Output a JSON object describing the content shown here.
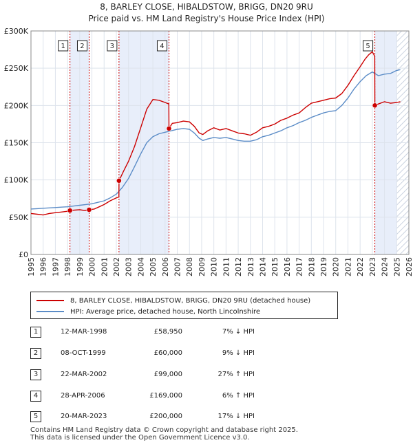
{
  "title": {
    "line1": "8, BARLEY CLOSE, HIBALDSTOW, BRIGG, DN20 9RU",
    "line2": "Price paid vs. HM Land Registry's House Price Index (HPI)"
  },
  "colors": {
    "property": "#cc0000",
    "hpi": "#5b8cc7",
    "shade": "#e8eefa",
    "hatch": "#b9c4d6",
    "grid": "#dde3ec"
  },
  "chart_data": {
    "type": "line",
    "title": "8, BARLEY CLOSE, HIBALDSTOW, BRIGG, DN20 9RU",
    "xlabel": "",
    "ylabel": "",
    "xlim": [
      1995,
      2026
    ],
    "ylim": [
      0,
      300000
    ],
    "y_ticks": [
      {
        "value": 0,
        "label": "£0"
      },
      {
        "value": 50000,
        "label": "£50K"
      },
      {
        "value": 100000,
        "label": "£100K"
      },
      {
        "value": 150000,
        "label": "£150K"
      },
      {
        "value": 200000,
        "label": "£200K"
      },
      {
        "value": 250000,
        "label": "£250K"
      },
      {
        "value": 300000,
        "label": "£300K"
      }
    ],
    "x_ticks": [
      "1995",
      "1996",
      "1997",
      "1998",
      "1999",
      "2000",
      "2001",
      "2002",
      "2003",
      "2004",
      "2005",
      "2006",
      "2007",
      "2008",
      "2009",
      "2010",
      "2011",
      "2012",
      "2013",
      "2014",
      "2015",
      "2016",
      "2017",
      "2018",
      "2019",
      "2020",
      "2021",
      "2022",
      "2023",
      "2024",
      "2025",
      "2026"
    ],
    "grid": true,
    "shaded_periods": [
      [
        1998.2,
        1999.77
      ],
      [
        2002.22,
        2006.32
      ],
      [
        2023.21,
        2025.0
      ]
    ],
    "hatched_period": [
      2025.0,
      2026.0
    ],
    "series": [
      {
        "name": "8, BARLEY CLOSE, HIBALDSTOW, BRIGG, DN20 9RU (detached house)",
        "x": [
          1995.0,
          1995.5,
          1996.0,
          1996.5,
          1997.0,
          1997.5,
          1998.0,
          1998.2,
          1998.6,
          1999.0,
          1999.4,
          1999.77,
          2000.2,
          2000.6,
          2001.0,
          2001.5,
          2002.0,
          2002.21,
          2002.22,
          2002.6,
          2003.0,
          2003.5,
          2004.0,
          2004.5,
          2005.0,
          2005.5,
          2006.0,
          2006.31,
          2006.32,
          2006.6,
          2007.0,
          2007.5,
          2008.0,
          2008.4,
          2008.8,
          2009.1,
          2009.5,
          2010.0,
          2010.5,
          2011.0,
          2011.5,
          2012.0,
          2012.5,
          2013.0,
          2013.5,
          2014.0,
          2014.5,
          2015.0,
          2015.5,
          2016.0,
          2016.5,
          2017.0,
          2017.5,
          2018.0,
          2018.5,
          2019.0,
          2019.5,
          2020.0,
          2020.5,
          2021.0,
          2021.5,
          2022.0,
          2022.4,
          2022.7,
          2023.0,
          2023.2,
          2023.21,
          2023.5,
          2024.0,
          2024.5,
          2025.0,
          2025.3
        ],
        "values": [
          55000,
          54000,
          53000,
          55000,
          56000,
          57000,
          58000,
          58950,
          59500,
          60000,
          59000,
          60000,
          61000,
          64000,
          67000,
          72000,
          76000,
          77000,
          99000,
          112000,
          125000,
          145000,
          170000,
          195000,
          208000,
          207000,
          204000,
          202000,
          169000,
          176000,
          177000,
          179000,
          178000,
          172000,
          163000,
          161000,
          166000,
          170000,
          167000,
          169000,
          166000,
          163000,
          162000,
          160000,
          164000,
          170000,
          172000,
          175000,
          180000,
          183000,
          187000,
          190000,
          197000,
          203000,
          205000,
          207000,
          209000,
          210000,
          216000,
          227000,
          240000,
          252000,
          262000,
          268000,
          272000,
          266000,
          200000,
          202000,
          205000,
          203000,
          204000,
          205000
        ]
      },
      {
        "name": "HPI: Average price, detached house, North Lincolnshire",
        "x": [
          1995.0,
          1995.5,
          1996.0,
          1996.5,
          1997.0,
          1997.5,
          1998.0,
          1998.5,
          1999.0,
          1999.5,
          2000.0,
          2000.5,
          2001.0,
          2001.5,
          2002.0,
          2002.5,
          2003.0,
          2003.5,
          2004.0,
          2004.5,
          2005.0,
          2005.5,
          2006.0,
          2006.5,
          2007.0,
          2007.5,
          2008.0,
          2008.4,
          2008.8,
          2009.1,
          2009.5,
          2010.0,
          2010.5,
          2011.0,
          2011.5,
          2012.0,
          2012.5,
          2013.0,
          2013.5,
          2014.0,
          2014.5,
          2015.0,
          2015.5,
          2016.0,
          2016.5,
          2017.0,
          2017.5,
          2018.0,
          2018.5,
          2019.0,
          2019.5,
          2020.0,
          2020.5,
          2021.0,
          2021.5,
          2022.0,
          2022.5,
          2023.0,
          2023.5,
          2024.0,
          2024.5,
          2025.0,
          2025.3
        ],
        "values": [
          61000,
          61500,
          62000,
          62500,
          63000,
          63500,
          64000,
          65000,
          66000,
          67000,
          68000,
          70000,
          72000,
          76000,
          81000,
          90000,
          102000,
          118000,
          135000,
          150000,
          158000,
          162000,
          164000,
          166000,
          168000,
          169000,
          168000,
          163000,
          156000,
          153000,
          155000,
          157000,
          156000,
          157000,
          155000,
          153000,
          152000,
          152000,
          154000,
          158000,
          160000,
          163000,
          166000,
          170000,
          173000,
          177000,
          180000,
          184000,
          187000,
          190000,
          192000,
          193000,
          200000,
          210000,
          222000,
          232000,
          240000,
          245000,
          240000,
          242000,
          243000,
          247000,
          248000
        ]
      }
    ],
    "sale_markers": [
      {
        "label": "1",
        "x": 1998.2,
        "value": 58950
      },
      {
        "label": "2",
        "x": 1999.77,
        "value": 60000
      },
      {
        "label": "3",
        "x": 2002.22,
        "value": 99000
      },
      {
        "label": "4",
        "x": 2006.32,
        "value": 169000
      },
      {
        "label": "5",
        "x": 2023.21,
        "value": 200000
      }
    ]
  },
  "legend": {
    "property_label": "8, BARLEY CLOSE, HIBALDSTOW, BRIGG, DN20 9RU (detached house)",
    "hpi_label": "HPI: Average price, detached house, North Lincolnshire"
  },
  "sales": [
    {
      "num": "1",
      "date": "12-MAR-1998",
      "price": "£58,950",
      "hpi": "7% ↓ HPI"
    },
    {
      "num": "2",
      "date": "08-OCT-1999",
      "price": "£60,000",
      "hpi": "9% ↓ HPI"
    },
    {
      "num": "3",
      "date": "22-MAR-2002",
      "price": "£99,000",
      "hpi": "27% ↑ HPI"
    },
    {
      "num": "4",
      "date": "28-APR-2006",
      "price": "£169,000",
      "hpi": "6% ↑ HPI"
    },
    {
      "num": "5",
      "date": "20-MAR-2023",
      "price": "£200,000",
      "hpi": "17% ↓ HPI"
    }
  ],
  "footer": {
    "line1": "Contains HM Land Registry data © Crown copyright and database right 2025.",
    "line2": "This data is licensed under the Open Government Licence v3.0."
  }
}
